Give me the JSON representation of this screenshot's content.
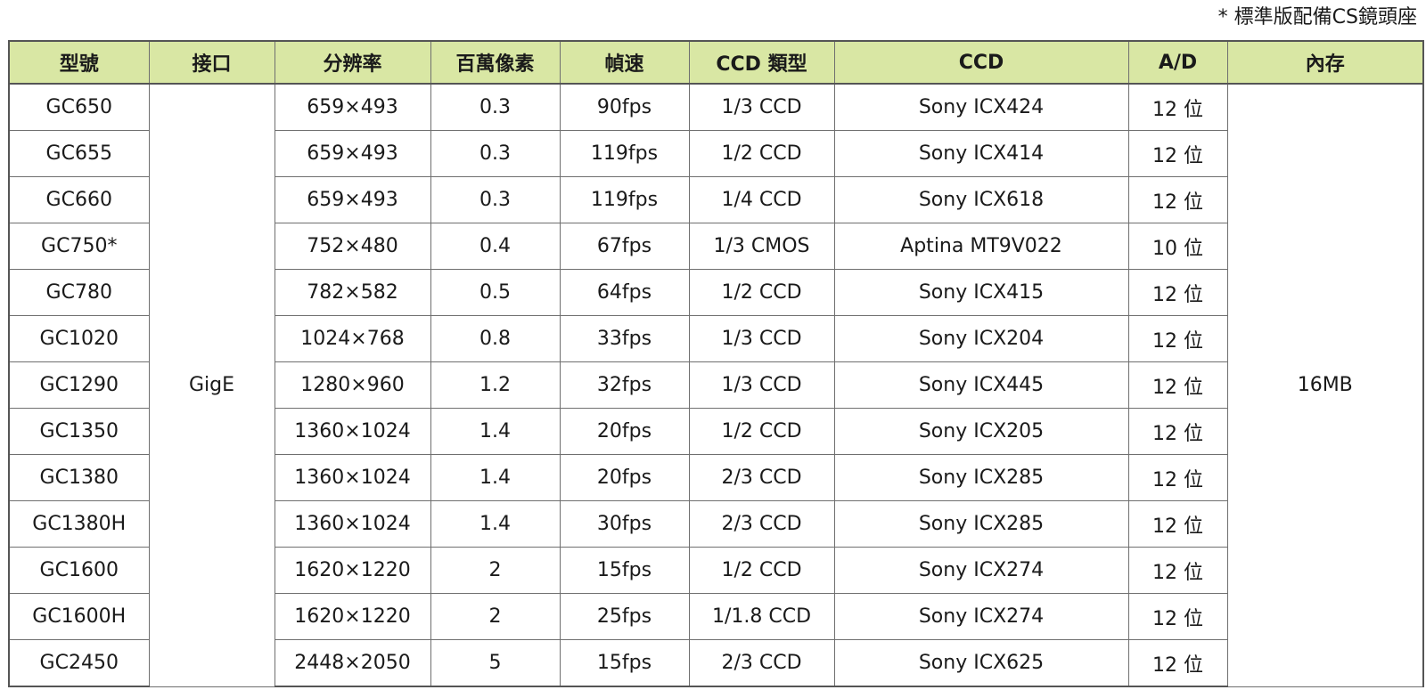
{
  "note": "* 標準版配備CS鏡頭座",
  "table": {
    "headers": [
      "型號",
      "接口",
      "分辨率",
      "百萬像素",
      "幀速",
      "CCD 類型",
      "CCD",
      "A/D",
      "內存"
    ],
    "interface": "GigE",
    "memory": "16MB",
    "rows": [
      {
        "model": "GC650",
        "resolution": "659×493",
        "megapixels": "0.3",
        "fps": "90fps",
        "ccd_type": "1/3 CCD",
        "sensor": "Sony ICX424",
        "ad": "12 位"
      },
      {
        "model": "GC655",
        "resolution": "659×493",
        "megapixels": "0.3",
        "fps": "119fps",
        "ccd_type": "1/2 CCD",
        "sensor": "Sony ICX414",
        "ad": "12 位"
      },
      {
        "model": "GC660",
        "resolution": "659×493",
        "megapixels": "0.3",
        "fps": "119fps",
        "ccd_type": "1/4 CCD",
        "sensor": "Sony ICX618",
        "ad": "12 位"
      },
      {
        "model": "GC750*",
        "resolution": "752×480",
        "megapixels": "0.4",
        "fps": "67fps",
        "ccd_type": "1/3 CMOS",
        "sensor": "Aptina MT9V022",
        "ad": "10 位"
      },
      {
        "model": "GC780",
        "resolution": "782×582",
        "megapixels": "0.5",
        "fps": "64fps",
        "ccd_type": "1/2 CCD",
        "sensor": "Sony ICX415",
        "ad": "12 位"
      },
      {
        "model": "GC1020",
        "resolution": "1024×768",
        "megapixels": "0.8",
        "fps": "33fps",
        "ccd_type": "1/3 CCD",
        "sensor": "Sony ICX204",
        "ad": "12 位"
      },
      {
        "model": "GC1290",
        "resolution": "1280×960",
        "megapixels": "1.2",
        "fps": "32fps",
        "ccd_type": "1/3 CCD",
        "sensor": "Sony ICX445",
        "ad": "12 位"
      },
      {
        "model": "GC1350",
        "resolution": "1360×1024",
        "megapixels": "1.4",
        "fps": "20fps",
        "ccd_type": "1/2 CCD",
        "sensor": "Sony ICX205",
        "ad": "12 位"
      },
      {
        "model": "GC1380",
        "resolution": "1360×1024",
        "megapixels": "1.4",
        "fps": "20fps",
        "ccd_type": "2/3 CCD",
        "sensor": "Sony ICX285",
        "ad": "12 位"
      },
      {
        "model": "GC1380H",
        "resolution": "1360×1024",
        "megapixels": "1.4",
        "fps": "30fps",
        "ccd_type": "2/3 CCD",
        "sensor": "Sony ICX285",
        "ad": "12 位"
      },
      {
        "model": "GC1600",
        "resolution": "1620×1220",
        "megapixels": "2",
        "fps": "15fps",
        "ccd_type": "1/2 CCD",
        "sensor": "Sony ICX274",
        "ad": "12 位"
      },
      {
        "model": "GC1600H",
        "resolution": "1620×1220",
        "megapixels": "2",
        "fps": "25fps",
        "ccd_type": "1/1.8 CCD",
        "sensor": "Sony ICX274",
        "ad": "12 位"
      },
      {
        "model": "GC2450",
        "resolution": "2448×2050",
        "megapixels": "5",
        "fps": "15fps",
        "ccd_type": "2/3 CCD",
        "sensor": "Sony ICX625",
        "ad": "12 位"
      }
    ]
  }
}
